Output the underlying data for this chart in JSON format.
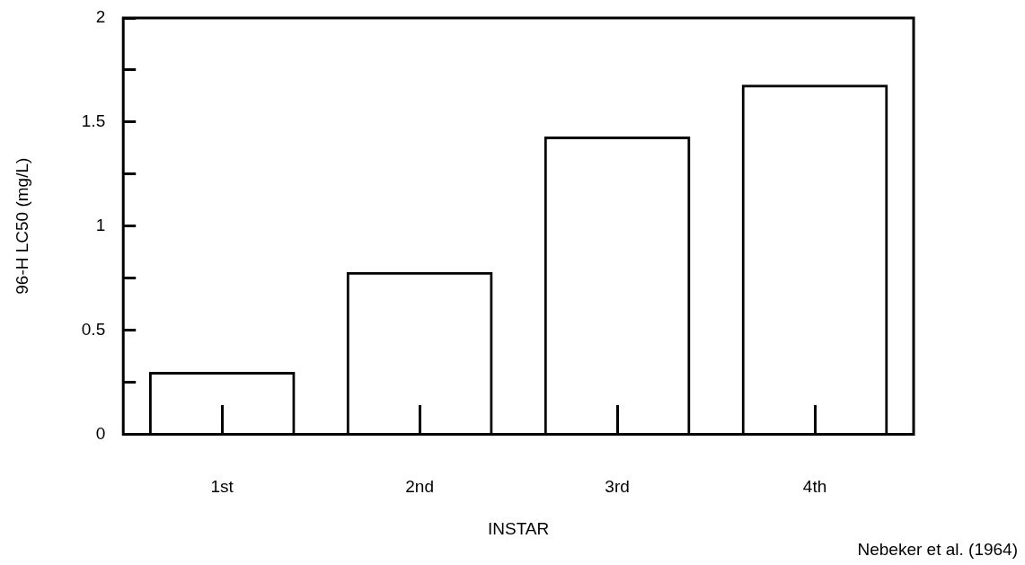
{
  "chart_data": {
    "type": "bar",
    "xlabel": "INSTAR",
    "ylabel": "96-H LC50 (mg/L)",
    "categories": [
      "1st",
      "2nd",
      "3rd",
      "4th"
    ],
    "values": [
      0.3,
      0.78,
      1.43,
      1.68
    ],
    "color": "#000000",
    "ylim": [
      0,
      2
    ],
    "yticks": [
      0,
      {
        "value": 0.25,
        "label": null
      },
      0.5,
      {
        "value": 0.75,
        "label": null
      },
      1,
      {
        "value": 1.25,
        "label": null
      },
      1.5,
      {
        "value": 1.75,
        "label": null
      },
      2
    ],
    "grid": false,
    "annotations": [
      "Nebeker et al. (1964)"
    ]
  }
}
